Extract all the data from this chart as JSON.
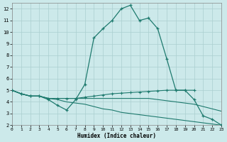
{
  "xlabel": "Humidex (Indice chaleur)",
  "xlim": [
    0,
    23
  ],
  "ylim": [
    2,
    12.5
  ],
  "yticks": [
    2,
    3,
    4,
    5,
    6,
    7,
    8,
    9,
    10,
    11,
    12
  ],
  "xticks": [
    0,
    1,
    2,
    3,
    4,
    5,
    6,
    7,
    8,
    9,
    10,
    11,
    12,
    13,
    14,
    15,
    16,
    17,
    18,
    19,
    20,
    21,
    22,
    23
  ],
  "bg_color": "#cce9ea",
  "grid_color": "#aacfcf",
  "line_color": "#1e7a6e",
  "line1_x": [
    0,
    1,
    2,
    3,
    4,
    5,
    6,
    7,
    8,
    9,
    10,
    11,
    12,
    13,
    14,
    15,
    16,
    17,
    18,
    19,
    20,
    21,
    22,
    23
  ],
  "line1_y": [
    5.0,
    4.7,
    4.5,
    4.5,
    4.2,
    3.7,
    3.3,
    4.2,
    5.5,
    9.5,
    10.3,
    11.0,
    12.0,
    12.3,
    11.0,
    11.2,
    10.3,
    7.7,
    5.0,
    5.0,
    4.2,
    2.8,
    2.5,
    2.0
  ],
  "line2_x": [
    0,
    1,
    2,
    3,
    4,
    5,
    6,
    7,
    8,
    9,
    10,
    11,
    12,
    13,
    14,
    15,
    16,
    17,
    18,
    19,
    20
  ],
  "line2_y": [
    5.0,
    4.7,
    4.5,
    4.5,
    4.3,
    4.3,
    4.3,
    4.3,
    4.4,
    4.5,
    4.6,
    4.7,
    4.75,
    4.8,
    4.85,
    4.9,
    4.95,
    5.0,
    5.0,
    5.0,
    5.0
  ],
  "line3_x": [
    0,
    1,
    2,
    3,
    4,
    5,
    6,
    7,
    8,
    9,
    10,
    11,
    12,
    13,
    14,
    15,
    16,
    17,
    18,
    19,
    20,
    21,
    22,
    23
  ],
  "line3_y": [
    5.0,
    4.7,
    4.5,
    4.5,
    4.3,
    4.3,
    4.3,
    4.3,
    4.3,
    4.3,
    4.3,
    4.3,
    4.3,
    4.3,
    4.3,
    4.3,
    4.2,
    4.1,
    4.0,
    3.9,
    3.8,
    3.6,
    3.4,
    3.2
  ],
  "line4_x": [
    0,
    1,
    2,
    3,
    4,
    5,
    6,
    7,
    8,
    9,
    10,
    11,
    12,
    13,
    14,
    15,
    16,
    17,
    18,
    19,
    20,
    21,
    22,
    23
  ],
  "line4_y": [
    5.0,
    4.7,
    4.5,
    4.5,
    4.3,
    4.2,
    4.0,
    3.9,
    3.8,
    3.6,
    3.4,
    3.3,
    3.1,
    3.0,
    2.9,
    2.8,
    2.7,
    2.6,
    2.5,
    2.4,
    2.3,
    2.2,
    2.1,
    2.0
  ]
}
